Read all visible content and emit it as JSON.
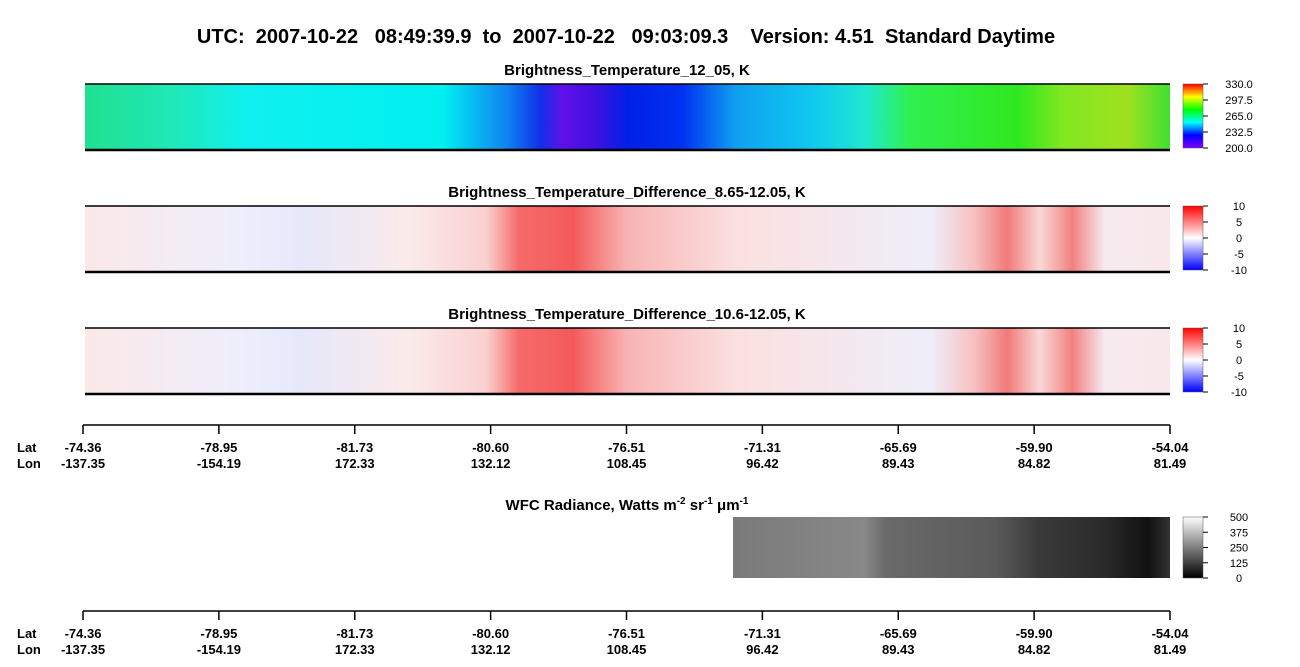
{
  "title": "UTC:  2007-10-22   08:49:39.9  to  2007-10-22   09:03:09.3    Version: 4.51  Standard Daytime",
  "panels": [
    {
      "title": "Brightness_Temperature_12_05, K",
      "colorbar": [
        "330.0",
        "297.5",
        "265.0",
        "232.5",
        "200.0"
      ]
    },
    {
      "title": "Brightness_Temperature_Difference_8.65-12.05, K",
      "colorbar": [
        "10",
        "5",
        "0",
        "-5",
        "-10"
      ]
    },
    {
      "title": "Brightness_Temperature_Difference_10.6-12.05, K",
      "colorbar": [
        "10",
        "5",
        "0",
        "-5",
        "-10"
      ]
    }
  ],
  "wfc": {
    "title_parts": [
      "WFC Radiance, Watts m",
      "-2",
      " sr",
      "-1",
      " μm",
      "-1"
    ],
    "colorbar": [
      "500",
      "375",
      "250",
      "125",
      "0"
    ]
  },
  "axes": [
    {
      "lat_label": "Lat",
      "lon_label": "Lon",
      "lat": [
        "-74.36",
        "-78.95",
        "-81.73",
        "-80.60",
        "-76.51",
        "-71.31",
        "-65.69",
        "-59.90",
        "-54.04"
      ],
      "lon": [
        "-137.35",
        "-154.19",
        "172.33",
        "132.12",
        "108.45",
        "96.42",
        "89.43",
        "84.82",
        "81.49"
      ]
    },
    {
      "lat_label": "Lat",
      "lon_label": "Lon",
      "lat": [
        "-74.36",
        "-78.95",
        "-81.73",
        "-80.60",
        "-76.51",
        "-71.31",
        "-65.69",
        "-59.90",
        "-54.04"
      ],
      "lon": [
        "-137.35",
        "-154.19",
        "172.33",
        "132.12",
        "108.45",
        "96.42",
        "89.43",
        "84.82",
        "81.49"
      ]
    }
  ]
}
